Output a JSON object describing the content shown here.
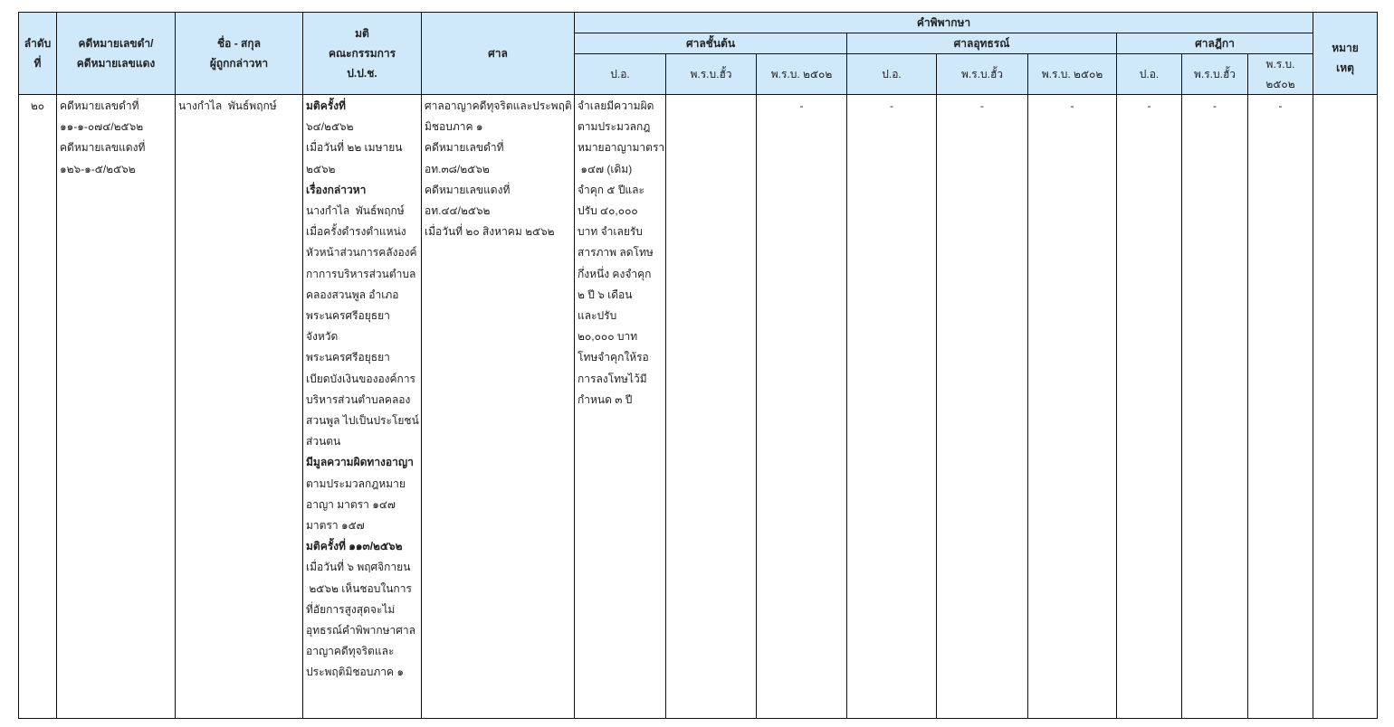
{
  "header": {
    "no": [
      "ลำดับ",
      "ที่"
    ],
    "case_no": [
      "คดีหมายเลขดำ/",
      "คดีหมายเลขแดง"
    ],
    "name": [
      "ชื่อ - สกุล",
      "ผู้ถูกกล่าวหา"
    ],
    "resolution": [
      "มติ",
      "คณะกรรมการ",
      "ป.ป.ช."
    ],
    "court": "ศาล",
    "judgment": "คำพิพากษา",
    "courts": [
      "ศาลชั้นต้น",
      "ศาลอุทธรณ์",
      "ศาลฎีกา"
    ],
    "sub_cols": [
      "ป.อ.",
      "พ.ร.บ.ฮั้ว",
      "พ.ร.บ. ๒๕๐๒",
      "ป.อ.",
      "พ.ร.บ.ฮั้ว",
      "พ.ร.บ. ๒๕๐๒",
      "ป.อ.",
      "พ.ร.บ.ฮั้ว",
      "พ.ร.บ.",
      "๒๕๐๒"
    ],
    "remark": [
      "หมาย",
      "เหตุ"
    ]
  },
  "row": {
    "no": "๒๐",
    "case_no": [
      "คดีหมายเลขดำที่",
      "๑๑-๑-๐๗๔/๒๕๖๒",
      "คดีหมายเลขแดงที่",
      "๑๒๖-๑-๕/๒๕๖๒"
    ],
    "name": "นางกำไล  พันธ์พฤกษ์",
    "resolution": [
      {
        "t": "มติครั้งที่",
        "b": true
      },
      {
        "t": "๖๔/๒๕๖๒"
      },
      {
        "t": "เมื่อวันที่ ๒๒ เมษายน"
      },
      {
        "t": "๒๕๖๒"
      },
      {
        "t": "เรื่องกล่าวหา",
        "b": true
      },
      {
        "t": "นางกำไล  พันธ์พฤกษ์"
      },
      {
        "t": "เมื่อครั้งดำรงตำแหน่ง"
      },
      {
        "t": "หัวหน้าส่วนการคลังองค์"
      },
      {
        "t": "กาการบริหารส่วนตำบล"
      },
      {
        "t": "คลองสวนพูล อำเภอ"
      },
      {
        "t": "พระนครศรีอยุธยา"
      },
      {
        "t": "จังหวัด"
      },
      {
        "t": "พระนครศรีอยุธยา"
      },
      {
        "t": "เบียดบังเงินขององค์การ"
      },
      {
        "t": "บริหารส่วนตำบลคลอง"
      },
      {
        "t": "สวนพูล ไปเป็นประโยชน์"
      },
      {
        "t": "ส่วนตน"
      },
      {
        "t": "มีมูลความผิดทางอาญา",
        "b": true
      },
      {
        "t": "ตามประมวลกฎหมาย"
      },
      {
        "t": "อาญา มาตรา ๑๔๗"
      },
      {
        "t": "มาตรา ๑๕๗"
      },
      {
        "t": "มติครั้งที่ ๑๑๓/๒๕๖๒",
        "b": true
      },
      {
        "t": "เมื่อวันที่ ๖ พฤศจิกายน"
      },
      {
        "t": " ๒๕๖๒ เห็นชอบในการ"
      },
      {
        "t": "ที่อัยการสูงสุดจะไม่"
      },
      {
        "t": "อุทธรณ์คำพิพากษาศาล"
      },
      {
        "t": "อาญาคดีทุจริตและ"
      },
      {
        "t": "ประพฤติมิชอบภาค ๑"
      }
    ],
    "court": [
      "ศาลอาญาคดีทุจริตและประพฤติ",
      "มิชอบภาค ๑",
      "คดีหมายเลขดำที่",
      "อท.๓๘/๒๕๖๒",
      "คดีหมายเลขแดงที่",
      "อท.๔๔/๒๕๖๒",
      "เมื่อวันที่ ๒๐ สิงหาคม ๒๕๖๒"
    ],
    "trial_po": [
      "จำเลยมีความผิด",
      "ตามประมวลกฎ",
      "หมายอาญามาตรา",
      " ๑๔๗ (เดิม)",
      "จำคุก ๕ ปีและ",
      "ปรับ ๔๐,๐๐๐",
      "บาท จำเลยรับ",
      "สารภาพ ลดโทษ",
      "กึ่งหนึ่ง คงจำคุก",
      "๒ ปี ๖ เดือน",
      "และปรับ",
      "๒๐,๐๐๐ บาท",
      "โทษจำคุกให้รอ",
      "การลงโทษไว้มี",
      "กำหนด ๓ ปี"
    ],
    "cells": [
      "",
      "-",
      "-",
      "-",
      "-",
      "-",
      "-",
      "-",
      ""
    ]
  }
}
